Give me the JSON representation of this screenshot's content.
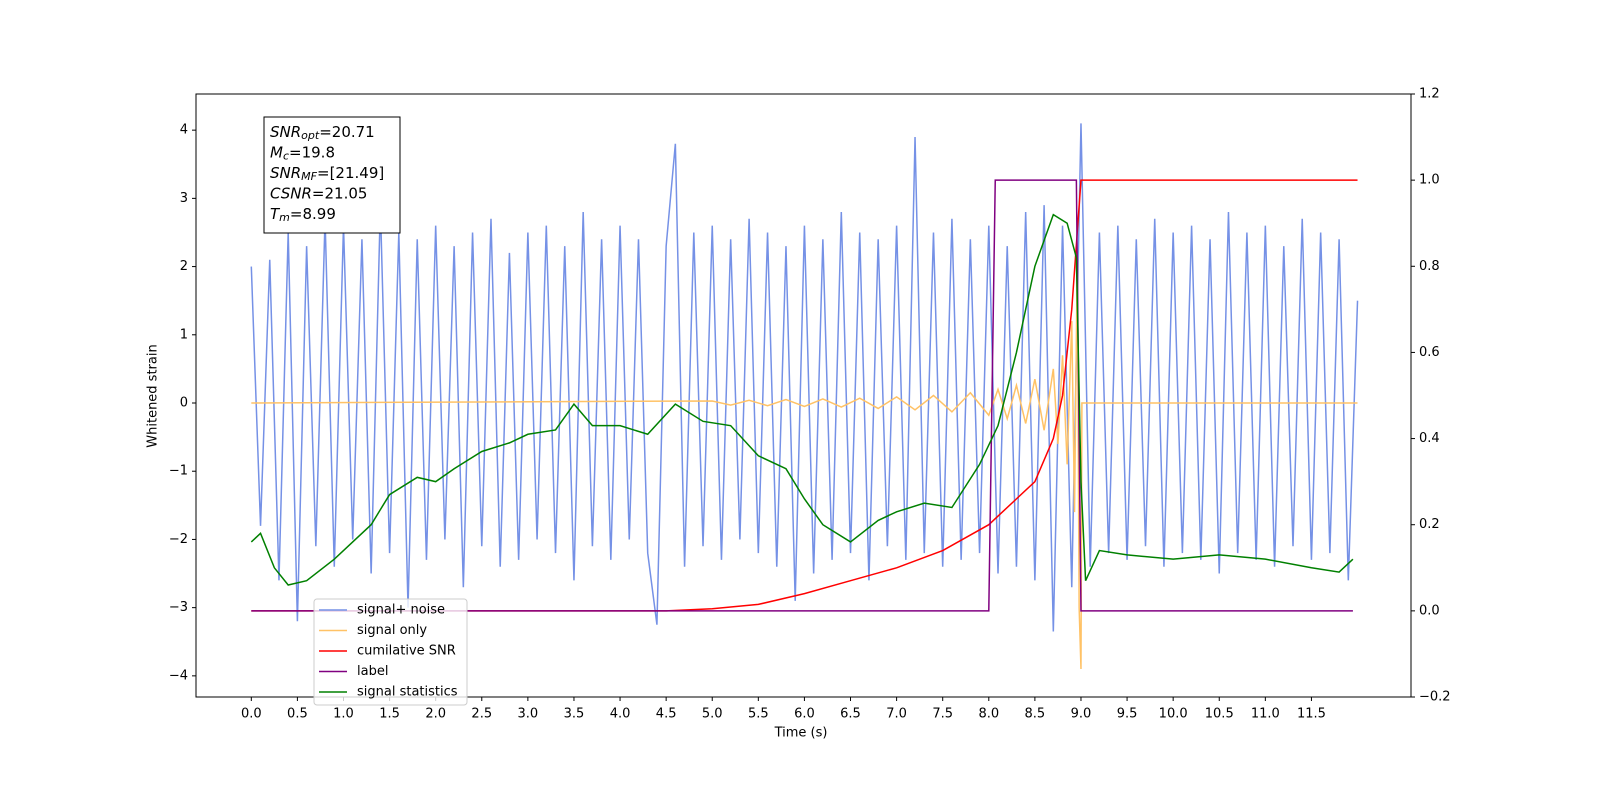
{
  "chart_data": {
    "type": "line",
    "xlabel": "Time (s)",
    "ylabel": "Whitened strain",
    "xlim": [
      -0.6,
      12.58
    ],
    "ylim": [
      -4.31,
      4.53
    ],
    "y2lim": [
      -0.2,
      1.2
    ],
    "xticks": [
      {
        "value": 0,
        "label": "0.0"
      },
      0.5,
      {
        "value": 1,
        "label": "1.0"
      },
      1.5,
      {
        "value": 2,
        "label": "2.0"
      },
      2.5,
      {
        "value": 3,
        "label": "3.0"
      },
      3.5,
      {
        "value": 4,
        "label": "4.0"
      },
      4.5,
      {
        "value": 5,
        "label": "5.0"
      },
      5.5,
      {
        "value": 6,
        "label": "6.0"
      },
      6.5,
      {
        "value": 7,
        "label": "7.0"
      },
      7.5,
      {
        "value": 8,
        "label": "8.0"
      },
      8.5,
      {
        "value": 9,
        "label": "9.0"
      },
      9.5,
      {
        "value": 10,
        "label": "10.0"
      },
      10.5,
      {
        "value": 11,
        "label": "11.0"
      },
      11.5
    ],
    "yticks": [
      {
        "value": -4,
        "label": "−4"
      },
      {
        "value": -3,
        "label": "−3"
      },
      {
        "value": -2,
        "label": "−2"
      },
      {
        "value": -1,
        "label": "−1"
      },
      0,
      1,
      2,
      3,
      4
    ],
    "y2ticks": [
      {
        "value": -0.2,
        "label": "−0.2"
      },
      {
        "value": 0,
        "label": "0.0"
      },
      0.2,
      0.4,
      0.6,
      0.8,
      {
        "value": 1,
        "label": "1.0"
      },
      1.2
    ],
    "annotations": [
      {
        "name": "SNR",
        "sub": "opt",
        "rest": "=20.71"
      },
      {
        "name": "M",
        "sub": "c",
        "rest": "=19.8"
      },
      {
        "name": "SNR",
        "sub": "MF",
        "rest": "=[21.49]"
      },
      {
        "name": "CSNR",
        "sub": null,
        "rest": "=21.05"
      },
      {
        "name": "T",
        "sub": "m",
        "rest": "=8.99"
      }
    ],
    "series": [
      {
        "name": "signal+ noise",
        "color": "#7591e6",
        "axis": "y",
        "x": [
          0.0,
          0.1,
          0.2,
          0.3,
          0.4,
          0.5,
          0.6,
          0.7,
          0.8,
          0.9,
          1.0,
          1.1,
          1.2,
          1.3,
          1.4,
          1.5,
          1.6,
          1.7,
          1.8,
          1.9,
          2.0,
          2.1,
          2.2,
          2.3,
          2.4,
          2.5,
          2.6,
          2.7,
          2.8,
          2.9,
          3.0,
          3.1,
          3.2,
          3.3,
          3.4,
          3.5,
          3.6,
          3.7,
          3.8,
          3.9,
          4.0,
          4.1,
          4.2,
          4.3,
          4.4,
          4.5,
          4.6,
          4.7,
          4.8,
          4.9,
          5.0,
          5.1,
          5.2,
          5.3,
          5.4,
          5.5,
          5.6,
          5.7,
          5.8,
          5.9,
          6.0,
          6.1,
          6.2,
          6.3,
          6.4,
          6.5,
          6.6,
          6.7,
          6.8,
          6.9,
          7.0,
          7.1,
          7.2,
          7.3,
          7.4,
          7.5,
          7.6,
          7.7,
          7.8,
          7.9,
          8.0,
          8.1,
          8.2,
          8.3,
          8.4,
          8.5,
          8.6,
          8.7,
          8.8,
          8.9,
          9.0,
          9.1,
          9.2,
          9.3,
          9.4,
          9.5,
          9.6,
          9.7,
          9.8,
          9.9,
          10.0,
          10.1,
          10.2,
          10.3,
          10.4,
          10.5,
          10.6,
          10.7,
          10.8,
          10.9,
          11.0,
          11.1,
          11.2,
          11.3,
          11.4,
          11.5,
          11.6,
          11.7,
          11.8,
          11.9,
          12.0
        ],
        "values": [
          2.0,
          -1.8,
          2.1,
          -2.6,
          2.5,
          -3.2,
          2.3,
          -2.1,
          2.7,
          -2.4,
          2.6,
          -2.0,
          2.4,
          -2.5,
          2.9,
          -2.2,
          2.5,
          -3.0,
          2.4,
          -2.3,
          2.6,
          -2.0,
          2.3,
          -2.7,
          2.5,
          -2.1,
          2.7,
          -2.4,
          2.2,
          -2.3,
          2.5,
          -2.0,
          2.6,
          -2.2,
          2.3,
          -2.6,
          2.8,
          -2.1,
          2.4,
          -2.3,
          2.6,
          -2.0,
          2.4,
          -2.2,
          -3.25,
          2.3,
          3.8,
          -2.4,
          2.5,
          -2.1,
          2.6,
          -2.3,
          2.4,
          -2.0,
          2.7,
          -2.2,
          2.5,
          -2.4,
          2.3,
          -2.9,
          2.6,
          -2.5,
          2.4,
          -2.3,
          2.8,
          -2.2,
          2.5,
          -2.6,
          2.4,
          -2.1,
          2.6,
          -2.3,
          3.9,
          -2.2,
          2.5,
          -2.4,
          2.7,
          -2.3,
          2.4,
          -2.2,
          2.6,
          -2.5,
          2.3,
          -2.4,
          2.8,
          -2.6,
          2.9,
          -3.35,
          2.6,
          -2.7,
          4.1,
          -2.4,
          2.5,
          -2.2,
          2.6,
          -2.3,
          2.4,
          -2.1,
          2.7,
          -2.4,
          2.5,
          -2.2,
          2.6,
          -2.3,
          2.4,
          -2.5,
          2.8,
          -2.2,
          2.5,
          -2.3,
          2.6,
          -2.4,
          2.3,
          -2.1,
          2.7,
          -2.3,
          2.5,
          -2.2,
          2.4,
          -2.6,
          1.5
        ]
      },
      {
        "name": "signal only",
        "color": "#ffc266",
        "axis": "y",
        "x": [
          0,
          5.0,
          5.2,
          5.4,
          5.6,
          5.8,
          6.0,
          6.2,
          6.4,
          6.6,
          6.8,
          7.0,
          7.2,
          7.4,
          7.6,
          7.8,
          8.0,
          8.1,
          8.2,
          8.3,
          8.4,
          8.5,
          8.6,
          8.7,
          8.75,
          8.8,
          8.85,
          8.9,
          8.93,
          8.96,
          8.98,
          9.0,
          9.01,
          12.0
        ],
        "values": [
          0,
          0.03,
          -0.03,
          0.04,
          -0.04,
          0.05,
          -0.05,
          0.06,
          -0.06,
          0.07,
          -0.08,
          0.09,
          -0.1,
          0.11,
          -0.13,
          0.15,
          -0.18,
          0.2,
          -0.23,
          0.26,
          -0.3,
          0.35,
          -0.4,
          0.5,
          -0.6,
          0.7,
          -0.9,
          1.2,
          -1.6,
          2.2,
          -3.0,
          -3.9,
          0,
          0
        ]
      },
      {
        "name": "cumilative SNR",
        "color": "#ff0000",
        "axis": "y2",
        "x": [
          0,
          4.5,
          5.0,
          5.5,
          6.0,
          6.5,
          7.0,
          7.5,
          8.0,
          8.5,
          8.7,
          8.8,
          8.9,
          8.95,
          9.0,
          12.0
        ],
        "values": [
          0,
          0,
          0.005,
          0.015,
          0.04,
          0.07,
          0.1,
          0.14,
          0.2,
          0.3,
          0.4,
          0.5,
          0.7,
          0.85,
          1.0,
          1.0
        ]
      },
      {
        "name": "label",
        "color": "#800080",
        "axis": "y2",
        "x": [
          0,
          8.0,
          8.07,
          8.95,
          9.0,
          11.95
        ],
        "values": [
          0,
          0,
          1,
          1,
          0,
          0
        ]
      },
      {
        "name": "signal statistics",
        "color": "#008000",
        "axis": "y2",
        "x": [
          0,
          0.1,
          0.25,
          0.4,
          0.6,
          0.9,
          1.1,
          1.3,
          1.5,
          1.8,
          2.0,
          2.2,
          2.5,
          2.8,
          3.0,
          3.3,
          3.5,
          3.7,
          4.0,
          4.3,
          4.6,
          4.9,
          5.2,
          5.5,
          5.8,
          6.0,
          6.2,
          6.5,
          6.8,
          7.0,
          7.3,
          7.6,
          7.9,
          8.1,
          8.3,
          8.5,
          8.7,
          8.85,
          8.95,
          9.0,
          9.05,
          9.2,
          9.5,
          10.0,
          10.5,
          11.0,
          11.5,
          11.8,
          11.95
        ],
        "values": [
          0.16,
          0.18,
          0.1,
          0.06,
          0.07,
          0.12,
          0.16,
          0.2,
          0.27,
          0.31,
          0.3,
          0.33,
          0.37,
          0.39,
          0.41,
          0.42,
          0.48,
          0.43,
          0.43,
          0.41,
          0.48,
          0.44,
          0.43,
          0.36,
          0.33,
          0.26,
          0.2,
          0.16,
          0.21,
          0.23,
          0.25,
          0.24,
          0.34,
          0.43,
          0.6,
          0.8,
          0.92,
          0.9,
          0.82,
          0.3,
          0.07,
          0.14,
          0.13,
          0.12,
          0.13,
          0.12,
          0.1,
          0.09,
          0.12
        ]
      }
    ]
  }
}
